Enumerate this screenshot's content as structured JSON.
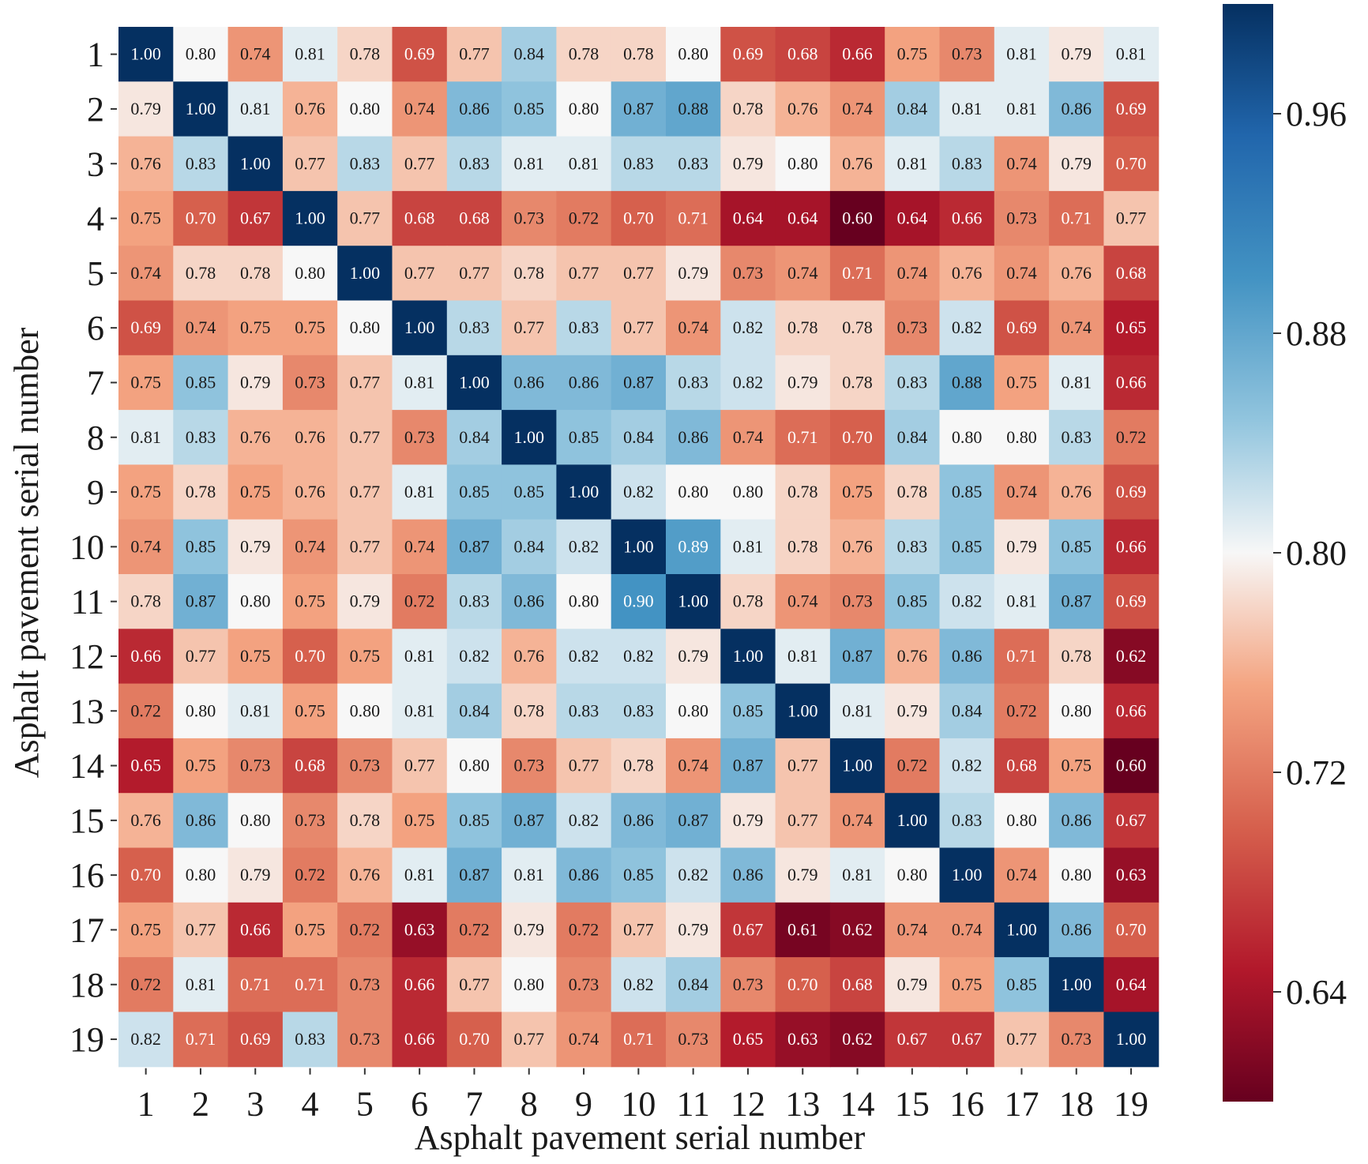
{
  "chart_data": {
    "type": "heatmap",
    "title": "",
    "xlabel": "Asphalt pavement serial number",
    "ylabel": "Asphalt pavement serial number",
    "x_categories": [
      "1",
      "2",
      "3",
      "4",
      "5",
      "6",
      "7",
      "8",
      "9",
      "10",
      "11",
      "12",
      "13",
      "14",
      "15",
      "16",
      "17",
      "18",
      "19"
    ],
    "y_categories": [
      "1",
      "2",
      "3",
      "4",
      "5",
      "6",
      "7",
      "8",
      "9",
      "10",
      "11",
      "12",
      "13",
      "14",
      "15",
      "16",
      "17",
      "18",
      "19"
    ],
    "values": [
      [
        1.0,
        0.8,
        0.74,
        0.81,
        0.78,
        0.69,
        0.77,
        0.84,
        0.78,
        0.78,
        0.8,
        0.69,
        0.68,
        0.66,
        0.75,
        0.73,
        0.81,
        0.79,
        0.81
      ],
      [
        0.79,
        1.0,
        0.81,
        0.76,
        0.8,
        0.74,
        0.86,
        0.85,
        0.8,
        0.87,
        0.88,
        0.78,
        0.76,
        0.74,
        0.84,
        0.81,
        0.81,
        0.86,
        0.69
      ],
      [
        0.76,
        0.83,
        1.0,
        0.77,
        0.83,
        0.77,
        0.83,
        0.81,
        0.81,
        0.83,
        0.83,
        0.79,
        0.8,
        0.76,
        0.81,
        0.83,
        0.74,
        0.79,
        0.7
      ],
      [
        0.75,
        0.7,
        0.67,
        1.0,
        0.77,
        0.68,
        0.68,
        0.73,
        0.72,
        0.7,
        0.71,
        0.64,
        0.64,
        0.6,
        0.64,
        0.66,
        0.73,
        0.71,
        0.77
      ],
      [
        0.74,
        0.78,
        0.78,
        0.8,
        1.0,
        0.77,
        0.77,
        0.78,
        0.77,
        0.77,
        0.79,
        0.73,
        0.74,
        0.71,
        0.74,
        0.76,
        0.74,
        0.76,
        0.68
      ],
      [
        0.69,
        0.74,
        0.75,
        0.75,
        0.8,
        1.0,
        0.83,
        0.77,
        0.83,
        0.77,
        0.74,
        0.82,
        0.78,
        0.78,
        0.73,
        0.82,
        0.69,
        0.74,
        0.65
      ],
      [
        0.75,
        0.85,
        0.79,
        0.73,
        0.77,
        0.81,
        1.0,
        0.86,
        0.86,
        0.87,
        0.83,
        0.82,
        0.79,
        0.78,
        0.83,
        0.88,
        0.75,
        0.81,
        0.66
      ],
      [
        0.81,
        0.83,
        0.76,
        0.76,
        0.77,
        0.73,
        0.84,
        1.0,
        0.85,
        0.84,
        0.86,
        0.74,
        0.71,
        0.7,
        0.84,
        0.8,
        0.8,
        0.83,
        0.72
      ],
      [
        0.75,
        0.78,
        0.75,
        0.76,
        0.77,
        0.81,
        0.85,
        0.85,
        1.0,
        0.82,
        0.8,
        0.8,
        0.78,
        0.75,
        0.78,
        0.85,
        0.74,
        0.76,
        0.69
      ],
      [
        0.74,
        0.85,
        0.79,
        0.74,
        0.77,
        0.74,
        0.87,
        0.84,
        0.82,
        1.0,
        0.89,
        0.81,
        0.78,
        0.76,
        0.83,
        0.85,
        0.79,
        0.85,
        0.66
      ],
      [
        0.78,
        0.87,
        0.8,
        0.75,
        0.79,
        0.72,
        0.83,
        0.86,
        0.8,
        0.9,
        1.0,
        0.78,
        0.74,
        0.73,
        0.85,
        0.82,
        0.81,
        0.87,
        0.69
      ],
      [
        0.66,
        0.77,
        0.75,
        0.7,
        0.75,
        0.81,
        0.82,
        0.76,
        0.82,
        0.82,
        0.79,
        1.0,
        0.81,
        0.87,
        0.76,
        0.86,
        0.71,
        0.78,
        0.62
      ],
      [
        0.72,
        0.8,
        0.81,
        0.75,
        0.8,
        0.81,
        0.84,
        0.78,
        0.83,
        0.83,
        0.8,
        0.85,
        1.0,
        0.81,
        0.79,
        0.84,
        0.72,
        0.8,
        0.66
      ],
      [
        0.65,
        0.75,
        0.73,
        0.68,
        0.73,
        0.77,
        0.8,
        0.73,
        0.77,
        0.78,
        0.74,
        0.87,
        0.77,
        1.0,
        0.72,
        0.82,
        0.68,
        0.75,
        0.6
      ],
      [
        0.76,
        0.86,
        0.8,
        0.73,
        0.78,
        0.75,
        0.85,
        0.87,
        0.82,
        0.86,
        0.87,
        0.79,
        0.77,
        0.74,
        1.0,
        0.83,
        0.8,
        0.86,
        0.67
      ],
      [
        0.7,
        0.8,
        0.79,
        0.72,
        0.76,
        0.81,
        0.87,
        0.81,
        0.86,
        0.85,
        0.82,
        0.86,
        0.79,
        0.81,
        0.8,
        1.0,
        0.74,
        0.8,
        0.63
      ],
      [
        0.75,
        0.77,
        0.66,
        0.75,
        0.72,
        0.63,
        0.72,
        0.79,
        0.72,
        0.77,
        0.79,
        0.67,
        0.61,
        0.62,
        0.74,
        0.74,
        1.0,
        0.86,
        0.7
      ],
      [
        0.72,
        0.81,
        0.71,
        0.71,
        0.73,
        0.66,
        0.77,
        0.8,
        0.73,
        0.82,
        0.84,
        0.73,
        0.7,
        0.68,
        0.79,
        0.75,
        0.85,
        1.0,
        0.64
      ],
      [
        0.82,
        0.71,
        0.69,
        0.83,
        0.73,
        0.66,
        0.7,
        0.77,
        0.74,
        0.71,
        0.73,
        0.65,
        0.63,
        0.62,
        0.67,
        0.67,
        0.77,
        0.73,
        1.0
      ]
    ],
    "colorscale": "RdBu",
    "colorbar": {
      "range": [
        0.6,
        1.0
      ],
      "ticks": [
        "0.64",
        "0.72",
        "0.80",
        "0.88",
        "0.96"
      ]
    },
    "cell_value_format": "2 decimals",
    "grid": false
  }
}
